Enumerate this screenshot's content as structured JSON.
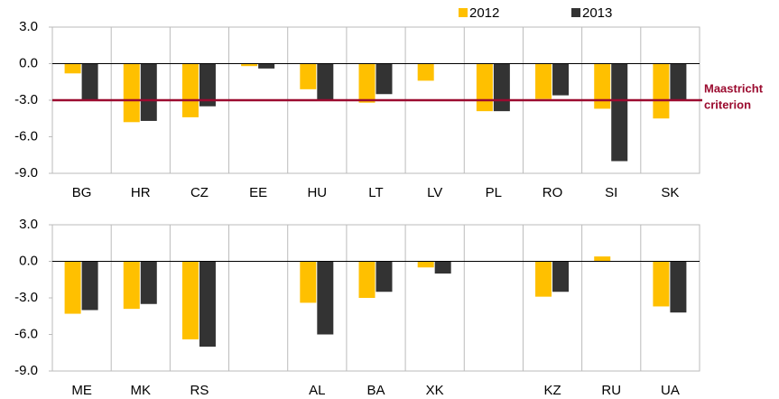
{
  "chart_data": [
    {
      "type": "bar",
      "categories": [
        "BG",
        "HR",
        "CZ",
        "EE",
        "HU",
        "LT",
        "LV",
        "PL",
        "RO",
        "SI",
        "SK"
      ],
      "series": [
        {
          "name": "2012",
          "color": "#ffc000",
          "values": [
            -0.8,
            -4.8,
            -4.4,
            -0.2,
            -2.1,
            -3.2,
            -1.4,
            -3.9,
            -2.9,
            -3.7,
            -4.5
          ]
        },
        {
          "name": "2013",
          "color": "#333333",
          "values": [
            -3.0,
            -4.7,
            -3.5,
            -0.4,
            -3.0,
            -2.5,
            null,
            -3.9,
            -2.6,
            -8.0,
            -3.0
          ]
        }
      ],
      "ylim": [
        -9,
        3
      ],
      "yticks": [
        {
          "value": 3,
          "label": "3.0"
        },
        {
          "value": 0,
          "label": "0.0"
        },
        {
          "value": -3,
          "label": "-3.0"
        },
        {
          "value": -6,
          "label": "-6.0"
        },
        {
          "value": -9,
          "label": "-9.0"
        }
      ],
      "reference_line": {
        "value": -3,
        "color": "#9b0b2f",
        "text": [
          "Maastricht",
          "criterion"
        ]
      },
      "legend": "top-right"
    },
    {
      "type": "bar",
      "categories": [
        "ME",
        "MK",
        "RS",
        null,
        "AL",
        "BA",
        "XK",
        null,
        "KZ",
        "RU",
        "UA"
      ],
      "series": [
        {
          "color": "#ffc000",
          "values": [
            -4.3,
            -3.9,
            -6.4,
            null,
            -3.4,
            -3.0,
            -0.5,
            null,
            -2.9,
            0.4,
            -3.7
          ]
        },
        {
          "color": "#333333",
          "values": [
            -4.0,
            -3.5,
            -7.0,
            null,
            -6.0,
            -2.5,
            -1.0,
            null,
            -2.5,
            null,
            -4.2
          ]
        }
      ],
      "ylim": [
        -9,
        3
      ],
      "yticks": [
        {
          "value": 3,
          "label": "3.0"
        },
        {
          "value": 0,
          "label": "0.0"
        },
        {
          "value": -3,
          "label": "-3.0"
        },
        {
          "value": -6,
          "label": "-6.0"
        },
        {
          "value": -9,
          "label": "-9.0"
        }
      ]
    }
  ]
}
